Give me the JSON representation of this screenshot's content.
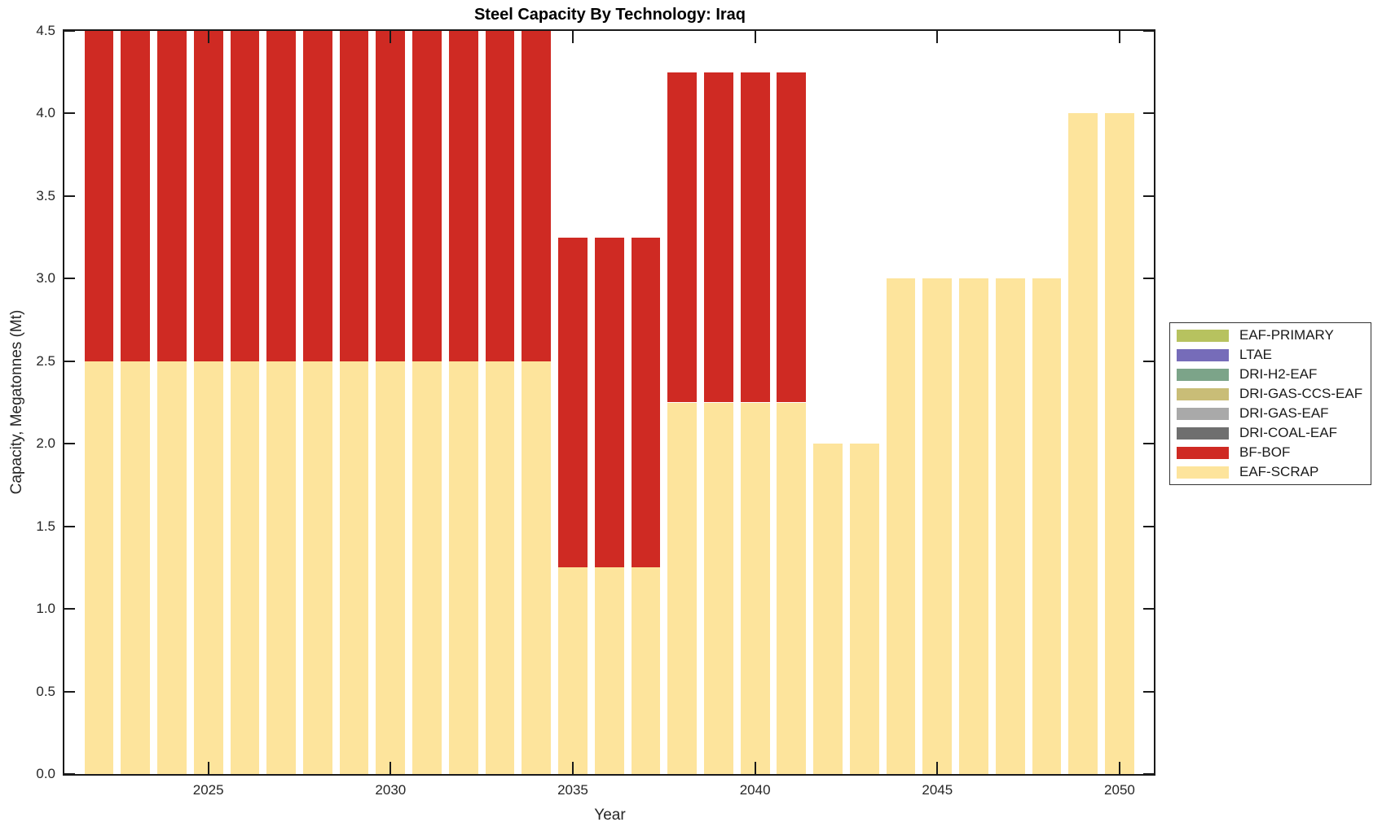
{
  "chart_data": {
    "type": "bar",
    "stacked": true,
    "title": "Steel Capacity By Technology: Iraq",
    "xlabel": "Year",
    "ylabel": "Capacity, Megatonnes (Mt)",
    "years": [
      2022,
      2023,
      2024,
      2025,
      2026,
      2027,
      2028,
      2029,
      2030,
      2031,
      2032,
      2033,
      2034,
      2035,
      2036,
      2037,
      2038,
      2039,
      2040,
      2041,
      2042,
      2043,
      2044,
      2045,
      2046,
      2047,
      2048,
      2049,
      2050
    ],
    "series": [
      {
        "name": "EAF-PRIMARY",
        "color": "#b7c25f",
        "values": [
          0,
          0,
          0,
          0,
          0,
          0,
          0,
          0,
          0,
          0,
          0,
          0,
          0,
          0,
          0,
          0,
          0,
          0,
          0,
          0,
          0,
          0,
          0,
          0,
          0,
          0,
          0,
          0,
          0
        ]
      },
      {
        "name": "LTAE",
        "color": "#766cb9",
        "values": [
          0,
          0,
          0,
          0,
          0,
          0,
          0,
          0,
          0,
          0,
          0,
          0,
          0,
          0,
          0,
          0,
          0,
          0,
          0,
          0,
          0,
          0,
          0,
          0,
          0,
          0,
          0,
          0,
          0
        ]
      },
      {
        "name": "DRI-H2-EAF",
        "color": "#7ca489",
        "values": [
          0,
          0,
          0,
          0,
          0,
          0,
          0,
          0,
          0,
          0,
          0,
          0,
          0,
          0,
          0,
          0,
          0,
          0,
          0,
          0,
          0,
          0,
          0,
          0,
          0,
          0,
          0,
          0,
          0
        ]
      },
      {
        "name": "DRI-GAS-CCS-EAF",
        "color": "#c9bd77",
        "values": [
          0,
          0,
          0,
          0,
          0,
          0,
          0,
          0,
          0,
          0,
          0,
          0,
          0,
          0,
          0,
          0,
          0,
          0,
          0,
          0,
          0,
          0,
          0,
          0,
          0,
          0,
          0,
          0,
          0
        ]
      },
      {
        "name": "DRI-GAS-EAF",
        "color": "#a9a9a9",
        "values": [
          0,
          0,
          0,
          0,
          0,
          0,
          0,
          0,
          0,
          0,
          0,
          0,
          0,
          0,
          0,
          0,
          0,
          0,
          0,
          0,
          0,
          0,
          0,
          0,
          0,
          0,
          0,
          0,
          0
        ]
      },
      {
        "name": "DRI-COAL-EAF",
        "color": "#6f6f6f",
        "values": [
          0,
          0,
          0,
          0,
          0,
          0,
          0,
          0,
          0,
          0,
          0,
          0,
          0,
          0,
          0,
          0,
          0,
          0,
          0,
          0,
          0,
          0,
          0,
          0,
          0,
          0,
          0,
          0,
          0
        ]
      },
      {
        "name": "BF-BOF",
        "color": "#cf2a23",
        "values": [
          2,
          2,
          2,
          2,
          2,
          2,
          2,
          2,
          2,
          2,
          2,
          2,
          2,
          2,
          2,
          2,
          2,
          2,
          2,
          2,
          0,
          0,
          0,
          0,
          0,
          0,
          0,
          0,
          0
        ]
      },
      {
        "name": "EAF-SCRAP",
        "color": "#fde49c",
        "values": [
          2.5,
          2.5,
          2.5,
          2.5,
          2.5,
          2.5,
          2.5,
          2.5,
          2.5,
          2.5,
          2.5,
          2.5,
          2.5,
          1.25,
          1.25,
          1.25,
          2.25,
          2.25,
          2.25,
          2.25,
          2,
          2,
          3,
          3,
          3,
          3,
          3,
          4,
          4
        ]
      }
    ],
    "stack_order_bottom_to_top": [
      "EAF-SCRAP",
      "BF-BOF",
      "DRI-COAL-EAF",
      "DRI-GAS-EAF",
      "DRI-GAS-CCS-EAF",
      "DRI-H2-EAF",
      "LTAE",
      "EAF-PRIMARY"
    ],
    "ylim": [
      0,
      4.5
    ],
    "xlim": [
      2021.05,
      2050.94
    ],
    "yticks": [
      "0.0",
      "0.5",
      "1.0",
      "1.5",
      "2.0",
      "2.5",
      "3.0",
      "3.5",
      "4.0",
      "4.5"
    ],
    "xticks": [
      "2025",
      "2030",
      "2035",
      "2040",
      "2045",
      "2050"
    ],
    "bar_rel_width": 0.8,
    "grid": false,
    "legend": {
      "position": "right-outside",
      "entries": [
        "EAF-PRIMARY",
        "LTAE",
        "DRI-H2-EAF",
        "DRI-GAS-CCS-EAF",
        "DRI-GAS-EAF",
        "DRI-COAL-EAF",
        "BF-BOF",
        "EAF-SCRAP"
      ]
    },
    "colors": {
      "axis": "#1a1a1a",
      "text": "#262626",
      "background": "#ffffff"
    }
  }
}
